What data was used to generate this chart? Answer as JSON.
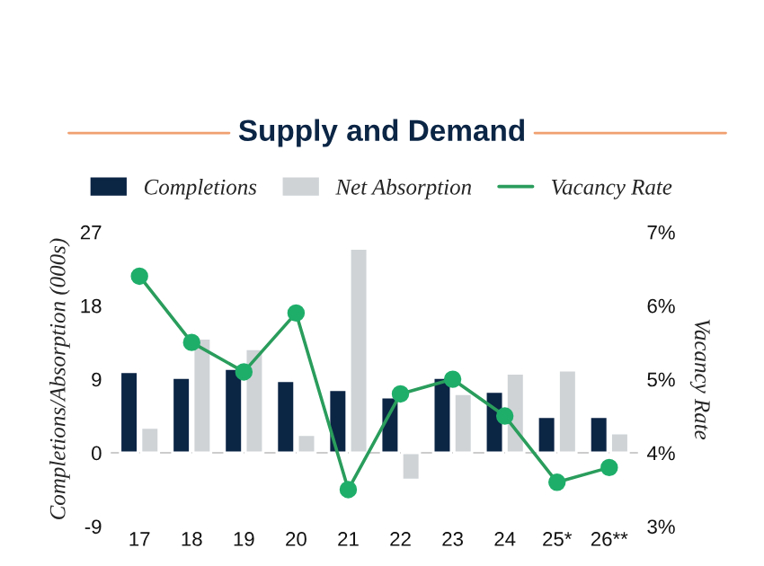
{
  "chart_data": {
    "type": "bar",
    "title": "Supply and Demand",
    "categories": [
      "17",
      "18",
      "19",
      "20",
      "21",
      "22",
      "23",
      "24",
      "25*",
      "26**"
    ],
    "series": [
      {
        "name": "Completions",
        "color": "#0b2545",
        "values": [
          9.9,
          9.2,
          10.3,
          8.8,
          7.7,
          6.8,
          9.2,
          7.5,
          4.4,
          4.4
        ]
      },
      {
        "name": "Net Absorption",
        "color": "#cfd3d6",
        "values": [
          3.1,
          14.0,
          12.7,
          2.2,
          25.0,
          -3.3,
          7.2,
          9.7,
          10.1,
          2.4
        ]
      },
      {
        "name": "Vacancy Rate",
        "type": "line",
        "axis": "y2",
        "color": "#2a9d5c",
        "marker": "circle",
        "values": [
          6.4,
          5.5,
          5.1,
          5.9,
          3.5,
          4.8,
          5.0,
          4.5,
          3.6,
          3.8
        ]
      }
    ],
    "ylabel": "Completions/Absorption (000s)",
    "y2label": "Vacancy Rate",
    "ylim": [
      -9,
      27
    ],
    "yticks": [
      -9,
      0,
      9,
      18,
      27
    ],
    "y2lim": [
      3,
      7
    ],
    "y2ticks": [
      {
        "value": 3,
        "label": "3%"
      },
      {
        "value": 4,
        "label": "4%"
      },
      {
        "value": 5,
        "label": "5%"
      },
      {
        "value": 6,
        "label": "6%"
      },
      {
        "value": 7,
        "label": "7%"
      }
    ],
    "ref_lines": [
      {
        "axis": "y",
        "value": 0,
        "color": "#cccccc"
      }
    ],
    "grid": false,
    "legend": "top"
  }
}
